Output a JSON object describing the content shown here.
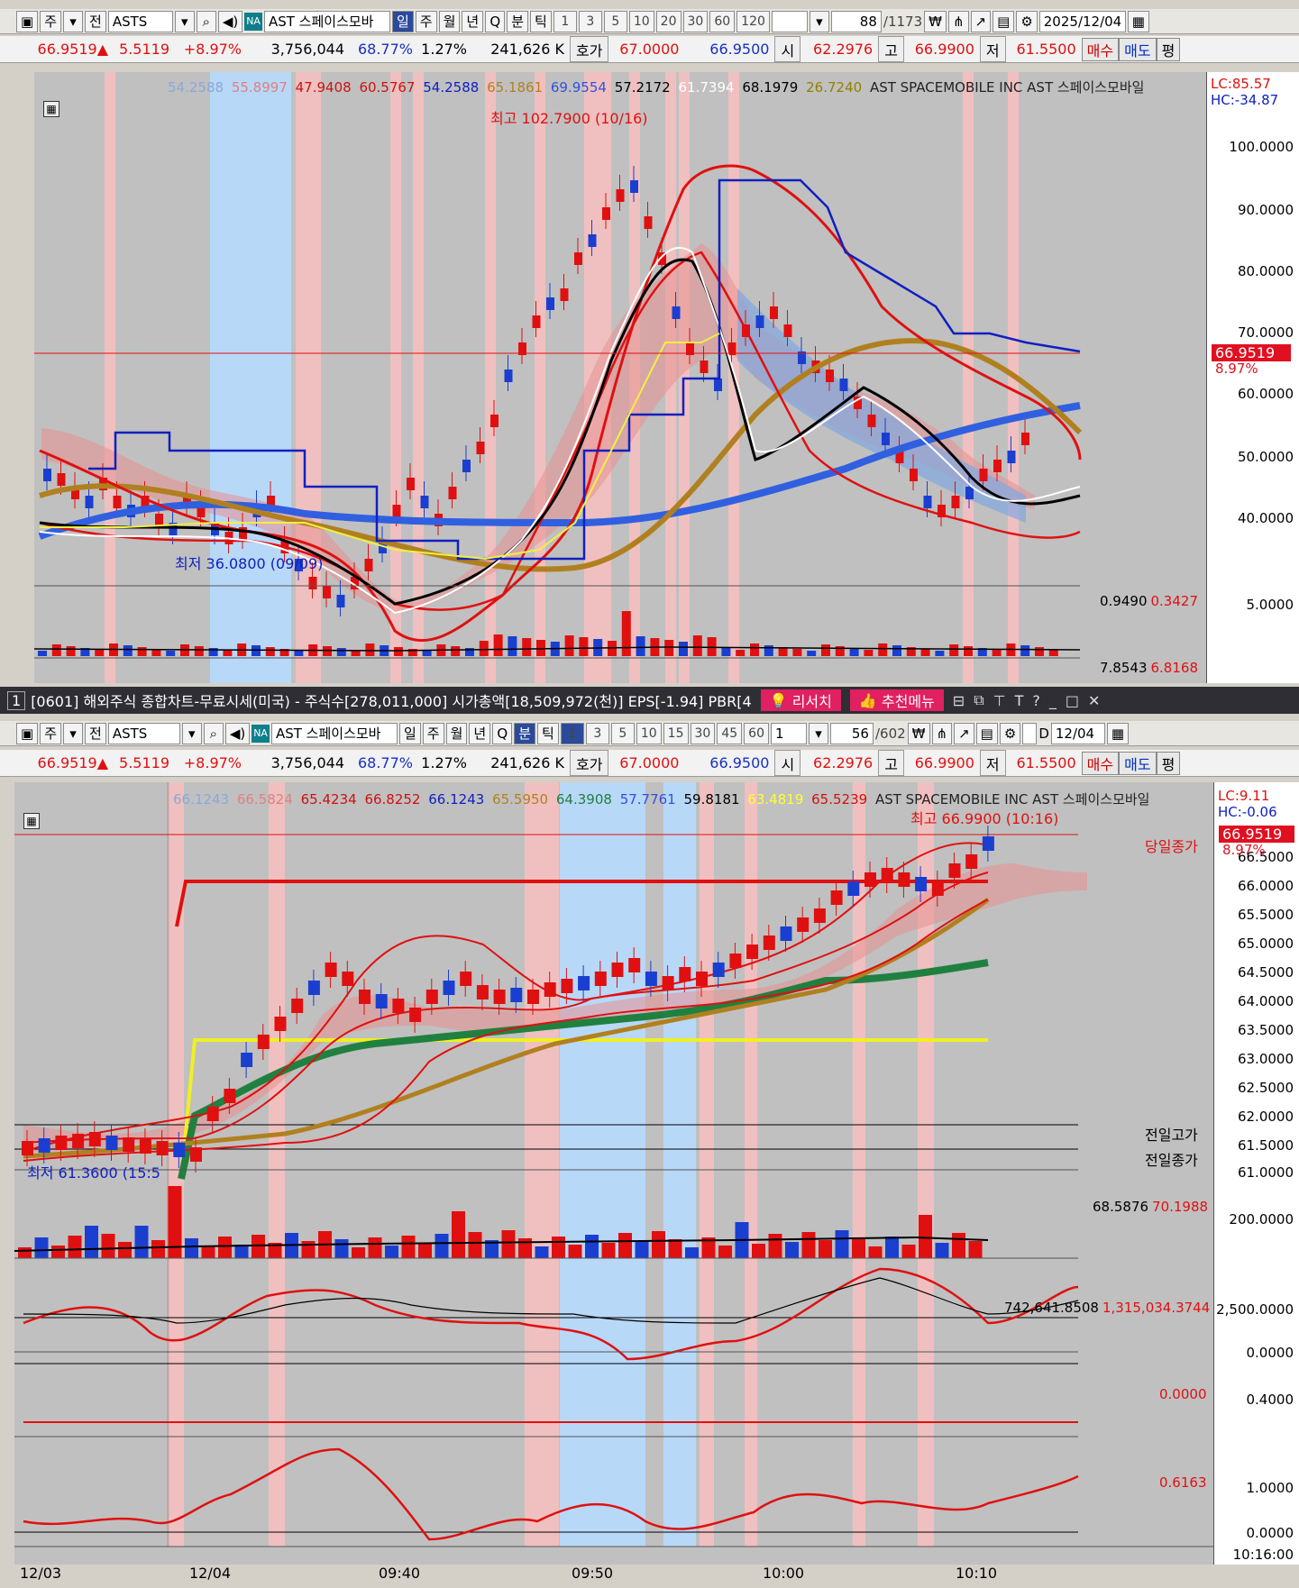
{
  "top": {
    "toolbar": {
      "cycle": "주",
      "all": "전",
      "symbol": "ASTS",
      "na": "NA",
      "name": "AST 스페이스모바",
      "periods": [
        "일",
        "주",
        "월",
        "년",
        "Q"
      ],
      "active_period": "일",
      "minute": "분",
      "tick": "틱",
      "intervals": [
        "1",
        "3",
        "5",
        "10",
        "20",
        "30",
        "60",
        "120"
      ],
      "count": "88",
      "total": "/1173",
      "date": "2025/12/04"
    },
    "quote": {
      "price": "66.9519▲",
      "change": "5.5119",
      "pct": "+8.97%",
      "volume": "3,756,044",
      "vol_ratio": "68.77%",
      "turnover": "1.27%",
      "amount": "241,626 K",
      "hoga_label": "호가",
      "ask": "67.0000",
      "bid": "66.9500",
      "open_label": "시",
      "open": "62.2976",
      "high_label": "고",
      "high": "66.9900",
      "low_label": "저",
      "low": "61.5500",
      "buy": "매수",
      "sell": "매도",
      "eval": "평"
    },
    "legend": [
      "54.2588",
      "55.8997",
      "47.9408",
      "60.5767",
      "54.2588",
      "65.1861",
      "69.9554",
      "57.2172",
      "61.7394",
      "68.1979",
      "26.7240"
    ],
    "legend_colors": [
      "#8aa8d8",
      "#e08080",
      "#d01010",
      "#d01010",
      "#1020c0",
      "#b08020",
      "#3050e0",
      "#000000",
      "#ffffff",
      "#000000",
      "#908000"
    ],
    "company": "AST SPACEMOBILE INC  AST 스페이스모바일",
    "lc": "LC:85.57",
    "hc": "HC:-34.87",
    "high_annot": "최고 102.7900 (10/16)",
    "low_annot": "최저 36.0800 (09/09)",
    "price_tag": "66.9519",
    "price_pct": "8.97%",
    "y_ticks": [
      "100.0000",
      "90.0000",
      "80.0000",
      "70.0000",
      "60.0000",
      "50.0000",
      "40.0000"
    ],
    "vol_legend": [
      "0.9490",
      "0.3427"
    ],
    "vol_tick": "5.0000",
    "osc_legend": [
      "7.8543",
      "6.8168"
    ]
  },
  "bottom": {
    "title": {
      "index": "1",
      "text": "[0601] 해외주식 종합차트-무료시세(미국) - 주식수[278,011,000] 시가총액[18,509,972(천)] EPS[-1.94] PBR[4",
      "research": "리서치",
      "recommend": "추천메뉴"
    },
    "toolbar": {
      "cycle": "주",
      "all": "전",
      "symbol": "ASTS",
      "na": "NA",
      "name": "AST 스페이스모바",
      "periods": [
        "일",
        "주",
        "월",
        "년",
        "Q"
      ],
      "minute": "분",
      "tick": "틱",
      "intervals": [
        "1",
        "3",
        "5",
        "10",
        "15",
        "30",
        "45",
        "60"
      ],
      "active_interval": "1",
      "unit": "1",
      "count": "56",
      "total": "/602",
      "d_label": "D",
      "date": "12/04"
    },
    "legend": [
      "66.1243",
      "66.5824",
      "65.4234",
      "66.8252",
      "66.1243",
      "65.5950",
      "64.3908",
      "57.7761",
      "59.8181",
      "63.4819",
      "65.5239"
    ],
    "legend_colors": [
      "#8aa8d8",
      "#e08080",
      "#d01010",
      "#d01010",
      "#1020c0",
      "#b08020",
      "#208040",
      "#3050e0",
      "#000000",
      "#ffff30",
      "#d01010"
    ],
    "company": "AST SPACEMOBILE INC  AST 스페이스모바일",
    "lc": "LC:9.11",
    "hc": "HC:-0.06",
    "high_annot": "최고 66.9900 (10:16)",
    "low_annot": "최저 61.3600 (15:5",
    "close_label": "당일종가",
    "prev_high_label": "전일고가",
    "prev_close_label": "전일종가",
    "price_tag": "66.9519",
    "price_pct": "8.97%",
    "y_ticks": [
      "66.5000",
      "66.0000",
      "65.5000",
      "65.0000",
      "64.5000",
      "64.0000",
      "63.5000",
      "63.0000",
      "62.5000",
      "62.0000",
      "61.5000",
      "61.0000"
    ],
    "vol_legend": [
      "68.5876",
      "70.1988"
    ],
    "vol_tick": "200.0000",
    "osc1_legend": [
      "742,641.8508",
      "1,315,034.3744"
    ],
    "osc1_ticks": [
      "2,500.0000",
      "0.0000"
    ],
    "osc2_legend": "0.0000",
    "osc2_tick": "0.4000",
    "osc3_legend": "0.6163",
    "osc3_ticks": [
      "1.0000",
      "0.0000"
    ],
    "x_labels": [
      "12/03",
      "12/04",
      "09:40",
      "09:50",
      "10:00",
      "10:10"
    ],
    "x_end": "10:16:00"
  }
}
